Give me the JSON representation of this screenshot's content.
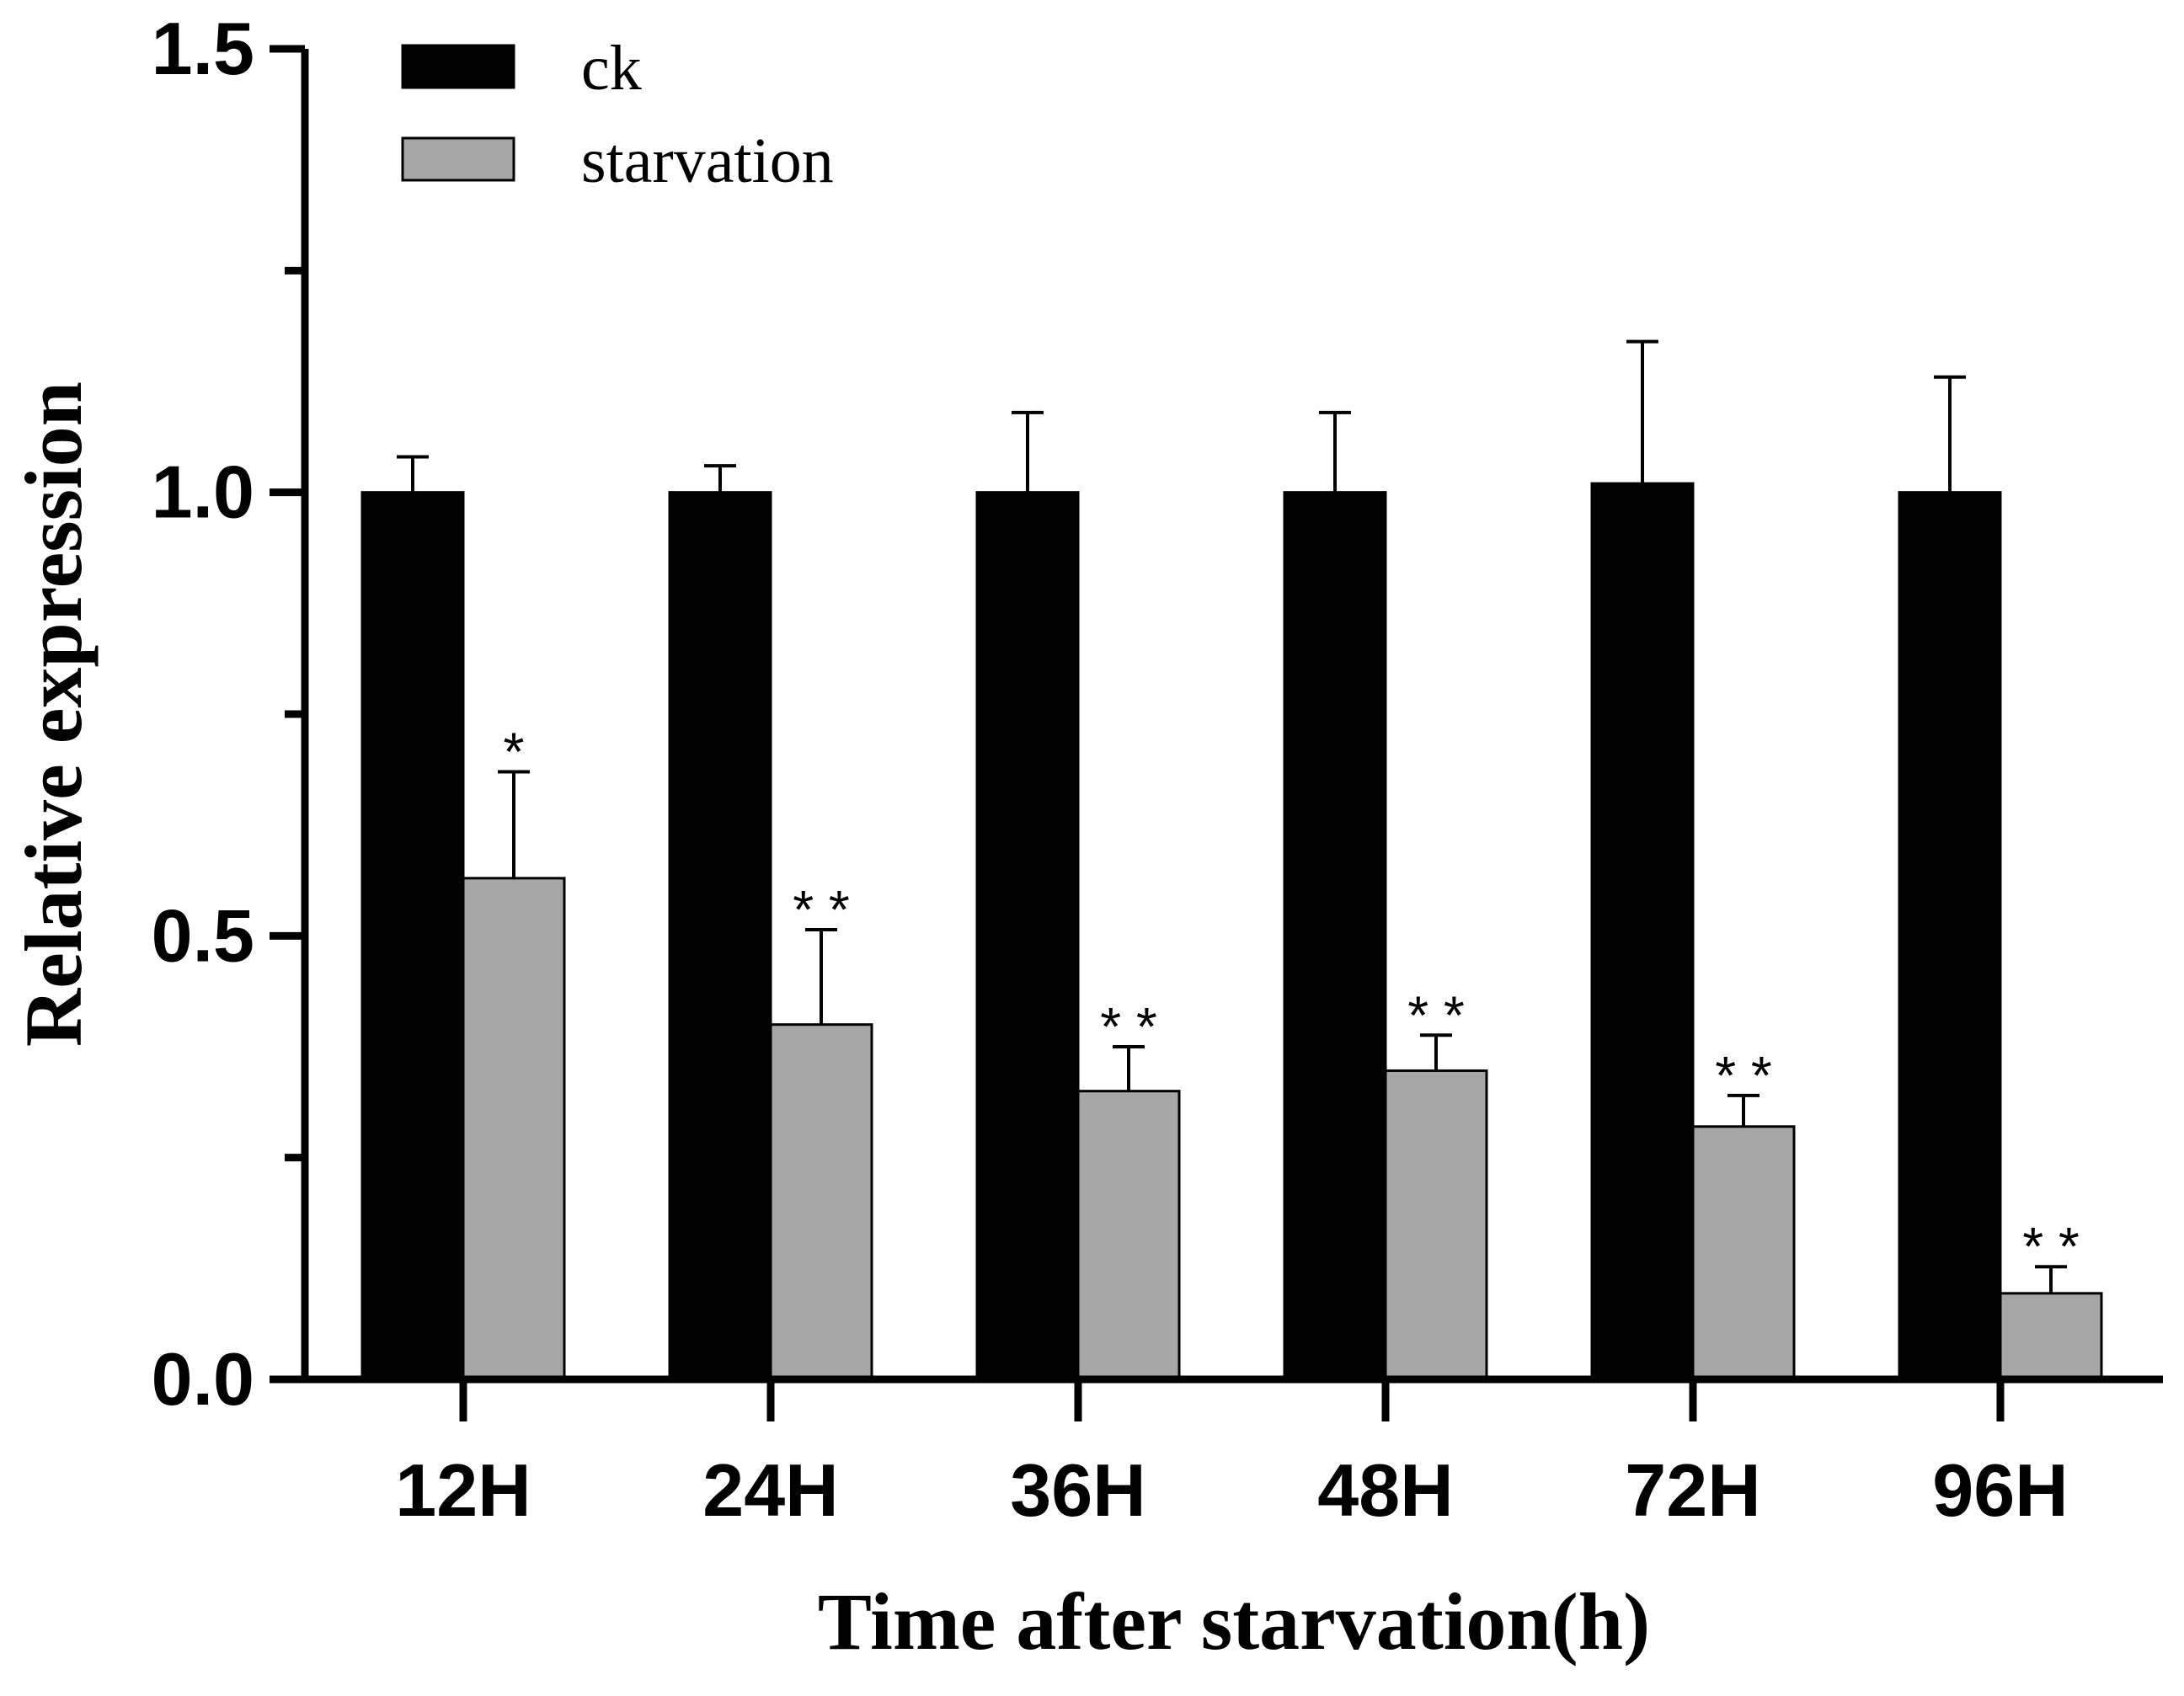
{
  "chart_data": {
    "type": "bar",
    "title": "",
    "xlabel": "Time after starvation(h)",
    "ylabel": "Relative expression",
    "ylim": [
      0,
      1.5
    ],
    "yticks": [
      0.0,
      0.5,
      1.0,
      1.5
    ],
    "yticks_labeled": [
      "0.0",
      "0.5",
      "1.0",
      "1.5"
    ],
    "minor_yticks": [
      0.25,
      0.75,
      1.25
    ],
    "categories": [
      "12H",
      "24H",
      "36H",
      "48H",
      "72H",
      "96H"
    ],
    "legend_position": "top-left",
    "series": [
      {
        "name": "ck",
        "color": "#000000",
        "values": [
          1.0,
          1.0,
          1.0,
          1.0,
          1.01,
          1.0
        ],
        "errors": [
          0.04,
          0.03,
          0.09,
          0.09,
          0.16,
          0.13
        ],
        "significance": [
          "",
          "",
          "",
          "",
          "",
          ""
        ]
      },
      {
        "name": "starvation",
        "color": "#a6a6a6",
        "values": [
          0.565,
          0.4,
          0.325,
          0.348,
          0.285,
          0.097
        ],
        "errors": [
          0.12,
          0.107,
          0.05,
          0.04,
          0.035,
          0.03
        ],
        "significance": [
          "*",
          "**",
          "**",
          "**",
          "**",
          "**"
        ]
      }
    ]
  }
}
